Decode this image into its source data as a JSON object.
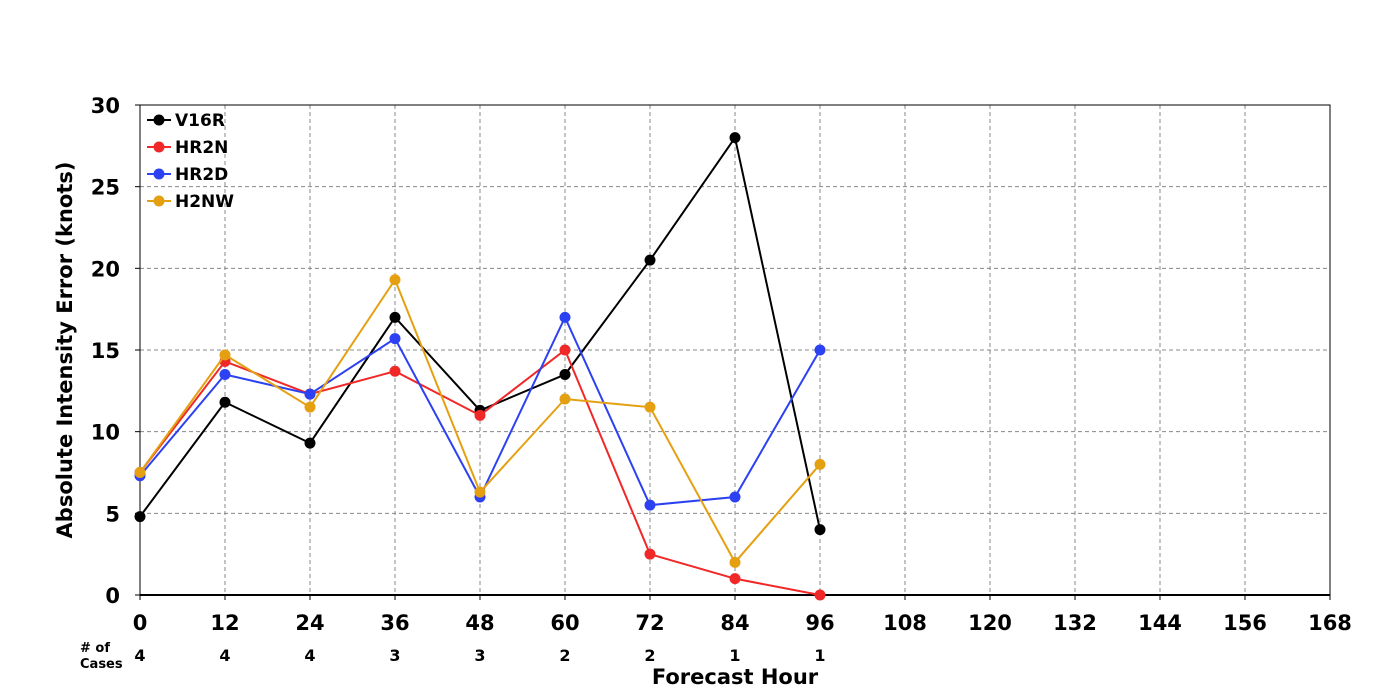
{
  "chart_data": {
    "type": "line",
    "title": "",
    "xlabel": "Forecast Hour",
    "ylabel": "Absolute Intensity Error (knots)",
    "xlim": [
      0,
      168
    ],
    "ylim": [
      0,
      30
    ],
    "x_ticks": [
      "0",
      "12",
      "24",
      "36",
      "48",
      "60",
      "72",
      "84",
      "96",
      "108",
      "120",
      "132",
      "144",
      "156",
      "168"
    ],
    "y_ticks": [
      "0",
      "5",
      "10",
      "15",
      "20",
      "25",
      "30"
    ],
    "grid": true,
    "legend_position": "top-left",
    "cases_label_line1": "# of",
    "cases_label_line2": "Cases",
    "cases": [
      {
        "x": 0,
        "n": "4"
      },
      {
        "x": 12,
        "n": "4"
      },
      {
        "x": 24,
        "n": "4"
      },
      {
        "x": 36,
        "n": "3"
      },
      {
        "x": 48,
        "n": "3"
      },
      {
        "x": 60,
        "n": "2"
      },
      {
        "x": 72,
        "n": "2"
      },
      {
        "x": 84,
        "n": "1"
      },
      {
        "x": 96,
        "n": "1"
      }
    ],
    "series": [
      {
        "name": "V16R",
        "color": "#000000",
        "points": [
          [
            0,
            4.8
          ],
          [
            12,
            11.8
          ],
          [
            24,
            9.3
          ],
          [
            36,
            17.0
          ],
          [
            48,
            11.3
          ],
          [
            60,
            13.5
          ],
          [
            72,
            20.5
          ],
          [
            84,
            28.0
          ],
          [
            96,
            4.0
          ]
        ]
      },
      {
        "name": "HR2N",
        "color": "#f02828",
        "points": [
          [
            0,
            7.5
          ],
          [
            12,
            14.3
          ],
          [
            24,
            12.3
          ],
          [
            36,
            13.7
          ],
          [
            48,
            11.0
          ],
          [
            60,
            15.0
          ],
          [
            72,
            2.5
          ],
          [
            84,
            1.0
          ],
          [
            96,
            0.0
          ]
        ]
      },
      {
        "name": "HR2D",
        "color": "#2c41f2",
        "points": [
          [
            0,
            7.3
          ],
          [
            12,
            13.5
          ],
          [
            24,
            12.3
          ],
          [
            36,
            15.7
          ],
          [
            48,
            6.0
          ],
          [
            60,
            17.0
          ],
          [
            72,
            5.5
          ],
          [
            84,
            6.0
          ],
          [
            96,
            15.0
          ]
        ]
      },
      {
        "name": "H2NW",
        "color": "#e5a011",
        "points": [
          [
            0,
            7.5
          ],
          [
            12,
            14.7
          ],
          [
            24,
            11.5
          ],
          [
            36,
            19.3
          ],
          [
            48,
            6.3
          ],
          [
            60,
            12.0
          ],
          [
            72,
            11.5
          ],
          [
            84,
            2.0
          ],
          [
            96,
            8.0
          ]
        ]
      }
    ]
  }
}
